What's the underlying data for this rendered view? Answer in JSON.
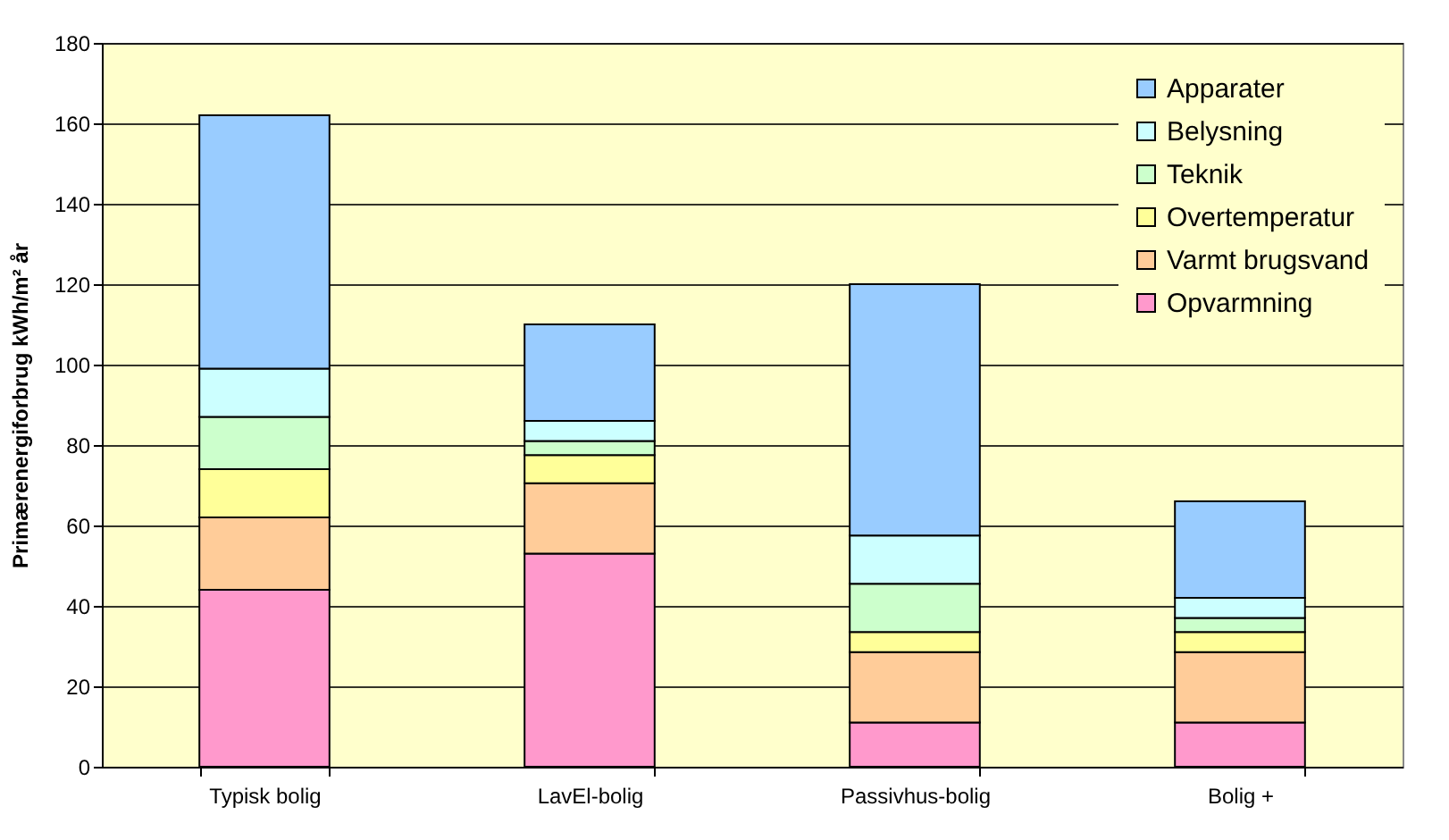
{
  "chart_data": {
    "type": "bar",
    "stacked": true,
    "ylabel": "Primærenergiforbrug kWh/m² år",
    "categories": [
      "Typisk bolig",
      "LavEl-bolig",
      "Passivhus-bolig",
      "Bolig +"
    ],
    "series": [
      {
        "name": "Opvarmning",
        "color": "#ff99cc",
        "values": [
          44,
          53,
          11,
          11
        ]
      },
      {
        "name": "Varmt brugsvand",
        "color": "#ffcc99",
        "values": [
          18,
          17.5,
          17.5,
          17.5
        ]
      },
      {
        "name": "Overtemperatur",
        "color": "#ffff99",
        "values": [
          12,
          7,
          5,
          5
        ]
      },
      {
        "name": "Teknik",
        "color": "#ccffcc",
        "values": [
          13,
          3.5,
          12,
          3.5
        ]
      },
      {
        "name": "Belysning",
        "color": "#ccffff",
        "values": [
          12,
          5,
          12,
          5
        ]
      },
      {
        "name": "Apparater",
        "color": "#99ccff",
        "values": [
          63,
          24,
          62.5,
          24
        ]
      }
    ],
    "ylim": [
      0,
      180
    ],
    "yticks": [
      0,
      20,
      40,
      60,
      80,
      100,
      120,
      140,
      160,
      180
    ],
    "grid": "y",
    "legend": "top right"
  }
}
